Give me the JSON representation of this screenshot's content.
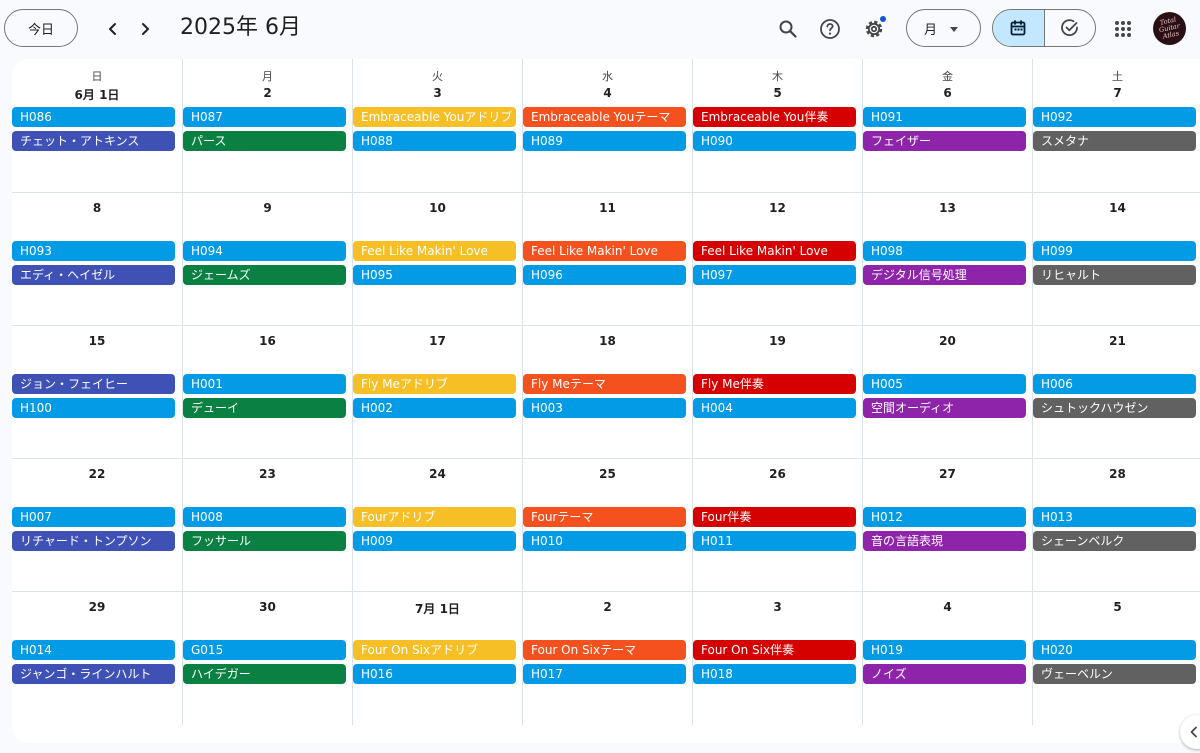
{
  "header": {
    "today_label": "今日",
    "title": "2025年 6月",
    "view_label": "月",
    "icons": [
      "chevron-left-icon",
      "chevron-right-icon",
      "search-icon",
      "help-icon",
      "settings-icon",
      "calendar-icon",
      "tasks-icon",
      "apps-icon"
    ],
    "notification_dot_color": "#0b57d0"
  },
  "calendar": {
    "weekdays": [
      "日",
      "月",
      "火",
      "水",
      "木",
      "金",
      "土"
    ],
    "colors": {
      "blue": "#039be5",
      "indigo": "#3f51b5",
      "green": "#0b8043",
      "yellow": "#f6bf26",
      "orange": "#f4511e",
      "red": "#d50000",
      "purple": "#8e24aa",
      "gray": "#616161"
    },
    "weeks": [
      [
        {
          "date": "6月 1日",
          "events": [
            {
              "title": "H086",
              "color": "blue"
            },
            {
              "title": "チェット・アトキンス",
              "color": "indigo"
            }
          ]
        },
        {
          "date": "2",
          "events": [
            {
              "title": "H087",
              "color": "blue"
            },
            {
              "title": "パース",
              "color": "green"
            }
          ]
        },
        {
          "date": "3",
          "events": [
            {
              "title": "Embraceable Youアドリブ",
              "color": "yellow"
            },
            {
              "title": "H088",
              "color": "blue"
            }
          ]
        },
        {
          "date": "4",
          "events": [
            {
              "title": "Embraceable Youテーマ",
              "color": "orange"
            },
            {
              "title": "H089",
              "color": "blue"
            }
          ]
        },
        {
          "date": "5",
          "events": [
            {
              "title": "Embraceable You伴奏",
              "color": "red"
            },
            {
              "title": "H090",
              "color": "blue"
            }
          ]
        },
        {
          "date": "6",
          "events": [
            {
              "title": "H091",
              "color": "blue"
            },
            {
              "title": "フェイザー",
              "color": "purple"
            }
          ]
        },
        {
          "date": "7",
          "events": [
            {
              "title": "H092",
              "color": "blue"
            },
            {
              "title": "スメタナ",
              "color": "gray"
            }
          ]
        }
      ],
      [
        {
          "date": "8",
          "events": [
            {
              "title": "H093",
              "color": "blue"
            },
            {
              "title": "エディ・ヘイゼル",
              "color": "indigo"
            }
          ]
        },
        {
          "date": "9",
          "events": [
            {
              "title": "H094",
              "color": "blue"
            },
            {
              "title": "ジェームズ",
              "color": "green"
            }
          ]
        },
        {
          "date": "10",
          "events": [
            {
              "title": "Feel Like Makin' Love",
              "color": "yellow"
            },
            {
              "title": "H095",
              "color": "blue"
            }
          ]
        },
        {
          "date": "11",
          "events": [
            {
              "title": "Feel Like Makin' Love",
              "color": "orange"
            },
            {
              "title": "H096",
              "color": "blue"
            }
          ]
        },
        {
          "date": "12",
          "events": [
            {
              "title": "Feel Like Makin' Love",
              "color": "red"
            },
            {
              "title": "H097",
              "color": "blue"
            }
          ]
        },
        {
          "date": "13",
          "events": [
            {
              "title": "H098",
              "color": "blue"
            },
            {
              "title": "デジタル信号処理",
              "color": "purple"
            }
          ]
        },
        {
          "date": "14",
          "events": [
            {
              "title": "H099",
              "color": "blue"
            },
            {
              "title": "リヒャルト",
              "color": "gray"
            }
          ]
        }
      ],
      [
        {
          "date": "15",
          "events": [
            {
              "title": "ジョン・フェイヒー",
              "color": "indigo"
            },
            {
              "title": "H100",
              "color": "blue"
            }
          ]
        },
        {
          "date": "16",
          "events": [
            {
              "title": "H001",
              "color": "blue"
            },
            {
              "title": "デューイ",
              "color": "green"
            }
          ]
        },
        {
          "date": "17",
          "events": [
            {
              "title": "Fly Meアドリブ",
              "color": "yellow"
            },
            {
              "title": "H002",
              "color": "blue"
            }
          ]
        },
        {
          "date": "18",
          "events": [
            {
              "title": "Fly Meテーマ",
              "color": "orange"
            },
            {
              "title": "H003",
              "color": "blue"
            }
          ]
        },
        {
          "date": "19",
          "events": [
            {
              "title": "Fly Me伴奏",
              "color": "red"
            },
            {
              "title": "H004",
              "color": "blue"
            }
          ]
        },
        {
          "date": "20",
          "events": [
            {
              "title": "H005",
              "color": "blue"
            },
            {
              "title": "空間オーディオ",
              "color": "purple"
            }
          ]
        },
        {
          "date": "21",
          "events": [
            {
              "title": "H006",
              "color": "blue"
            },
            {
              "title": "シュトックハウゼン",
              "color": "gray"
            }
          ]
        }
      ],
      [
        {
          "date": "22",
          "events": [
            {
              "title": "H007",
              "color": "blue"
            },
            {
              "title": "リチャード・トンプソン",
              "color": "indigo"
            }
          ]
        },
        {
          "date": "23",
          "events": [
            {
              "title": "H008",
              "color": "blue"
            },
            {
              "title": "フッサール",
              "color": "green"
            }
          ]
        },
        {
          "date": "24",
          "events": [
            {
              "title": "Fourアドリブ",
              "color": "yellow"
            },
            {
              "title": "H009",
              "color": "blue"
            }
          ]
        },
        {
          "date": "25",
          "events": [
            {
              "title": "Fourテーマ",
              "color": "orange"
            },
            {
              "title": "H010",
              "color": "blue"
            }
          ]
        },
        {
          "date": "26",
          "events": [
            {
              "title": "Four伴奏",
              "color": "red"
            },
            {
              "title": "H011",
              "color": "blue"
            }
          ]
        },
        {
          "date": "27",
          "events": [
            {
              "title": "H012",
              "color": "blue"
            },
            {
              "title": "音の言語表現",
              "color": "purple"
            }
          ]
        },
        {
          "date": "28",
          "events": [
            {
              "title": "H013",
              "color": "blue"
            },
            {
              "title": "シェーンベルク",
              "color": "gray"
            }
          ]
        }
      ],
      [
        {
          "date": "29",
          "events": [
            {
              "title": "H014",
              "color": "blue"
            },
            {
              "title": "ジャンゴ・ラインハルト",
              "color": "indigo"
            }
          ]
        },
        {
          "date": "30",
          "events": [
            {
              "title": "G015",
              "color": "blue"
            },
            {
              "title": "ハイデガー",
              "color": "green"
            }
          ]
        },
        {
          "date": "7月 1日",
          "events": [
            {
              "title": "Four On Sixアドリブ",
              "color": "yellow"
            },
            {
              "title": "H016",
              "color": "blue"
            }
          ]
        },
        {
          "date": "2",
          "events": [
            {
              "title": "Four On Sixテーマ",
              "color": "orange"
            },
            {
              "title": "H017",
              "color": "blue"
            }
          ]
        },
        {
          "date": "3",
          "events": [
            {
              "title": "Four On Six伴奏",
              "color": "red"
            },
            {
              "title": "H018",
              "color": "blue"
            }
          ]
        },
        {
          "date": "4",
          "events": [
            {
              "title": "H019",
              "color": "blue"
            },
            {
              "title": "ノイズ",
              "color": "purple"
            }
          ]
        },
        {
          "date": "5",
          "events": [
            {
              "title": "H020",
              "color": "blue"
            },
            {
              "title": "ヴェーベルン",
              "color": "gray"
            }
          ]
        }
      ]
    ]
  }
}
